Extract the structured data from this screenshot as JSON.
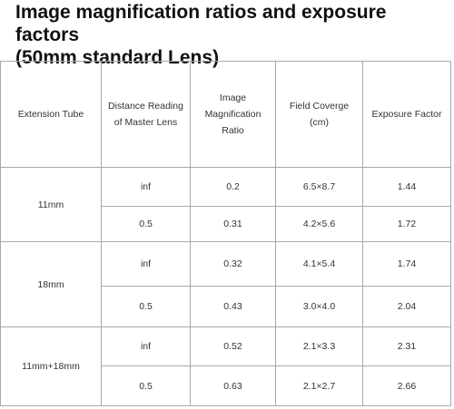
{
  "title": {
    "line1": "Image magnification ratios and exposure factors",
    "line2": "(50mm standard Lens)"
  },
  "table": {
    "headers": [
      "Extension Tube",
      "Distance Reading of Master Lens",
      "Image Magnification Ratio",
      "Field Coverge (cm)",
      "Exposure Factor"
    ],
    "groups": [
      {
        "tube": "11mm",
        "rows": [
          {
            "distance": "inf",
            "ratio": "0.2",
            "field": "6.5×8.7",
            "exposure": "1.44"
          },
          {
            "distance": "0.5",
            "ratio": "0.31",
            "field": "4.2×5.6",
            "exposure": "1.72"
          }
        ]
      },
      {
        "tube": "18mm",
        "rows": [
          {
            "distance": "inf",
            "ratio": "0.32",
            "field": "4.1×5.4",
            "exposure": "1.74"
          },
          {
            "distance": "0.5",
            "ratio": "0.43",
            "field": "3.0×4.0",
            "exposure": "2.04"
          }
        ]
      },
      {
        "tube": "11mm+18mm",
        "rows": [
          {
            "distance": "inf",
            "ratio": "0.52",
            "field": "2.1×3.3",
            "exposure": "2.31"
          },
          {
            "distance": "0.5",
            "ratio": "0.63",
            "field": "2.1×2.7",
            "exposure": "2.66"
          }
        ]
      }
    ]
  }
}
